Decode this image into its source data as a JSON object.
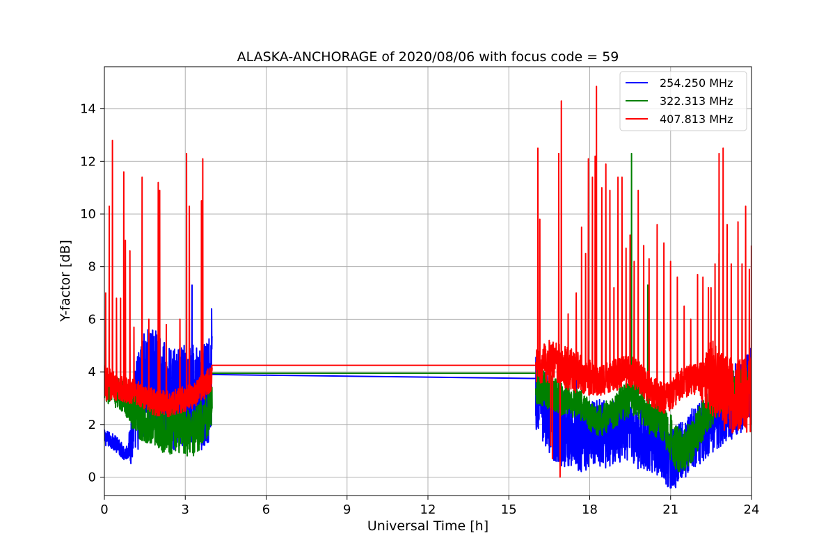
{
  "chart_data": {
    "type": "line",
    "title": "ALASKA-ANCHORAGE of 2020/08/06 with focus code = 59",
    "xlabel": "Universal Time [h]",
    "ylabel": "Y-factor [dB]",
    "xlim": [
      0,
      24
    ],
    "ylim": [
      -0.7,
      15.6
    ],
    "xticks": [
      0,
      3,
      6,
      9,
      12,
      15,
      18,
      21,
      24
    ],
    "yticks": [
      0,
      2,
      4,
      6,
      8,
      10,
      12,
      14
    ],
    "grid": true,
    "legend_position": "top-right",
    "series": [
      {
        "name": "254.250 MHz",
        "color": "#0000ff",
        "x": [
          0,
          0.25,
          0.5,
          0.75,
          0.9,
          1.0,
          1.25,
          1.5,
          1.75,
          2.0,
          2.25,
          2.5,
          2.75,
          3.0,
          3.25,
          3.5,
          3.75,
          4.0,
          16.0,
          16.25,
          16.5,
          16.75,
          17.0,
          17.25,
          17.5,
          17.75,
          18.0,
          18.25,
          18.5,
          18.75,
          19.0,
          19.25,
          19.5,
          19.75,
          20.0,
          20.25,
          20.5,
          20.75,
          21.0,
          21.25,
          21.5,
          21.75,
          22.0,
          22.25,
          22.5,
          22.75,
          23.0,
          23.25,
          23.5,
          23.75,
          24.0
        ],
        "y": [
          1.5,
          1.4,
          1.2,
          0.9,
          1.0,
          1.8,
          3.0,
          3.6,
          3.7,
          3.5,
          3.2,
          3.0,
          2.9,
          3.1,
          3.3,
          2.8,
          3.1,
          3.6,
          3.3,
          2.8,
          2.4,
          2.0,
          1.9,
          1.7,
          1.6,
          1.5,
          1.5,
          1.7,
          1.6,
          1.6,
          1.9,
          1.8,
          1.7,
          1.5,
          1.4,
          1.3,
          1.2,
          1.0,
          0.7,
          0.8,
          1.1,
          1.4,
          1.6,
          1.8,
          2.1,
          2.4,
          2.6,
          2.8,
          3.0,
          3.2,
          3.6
        ],
        "noise": [
          0.3,
          0.3,
          0.3,
          0.3,
          0.3,
          1.4,
          2.0,
          2.0,
          2.0,
          2.0,
          2.0,
          2.0,
          2.0,
          2.0,
          2.0,
          2.0,
          2.0,
          2.0,
          1.5,
          1.5,
          1.5,
          1.5,
          1.5,
          1.4,
          1.4,
          1.4,
          1.3,
          1.3,
          1.3,
          1.3,
          1.3,
          1.3,
          1.2,
          1.2,
          1.2,
          1.2,
          1.2,
          1.2,
          1.2,
          1.2,
          1.2,
          1.2,
          1.2,
          1.2,
          1.3,
          1.3,
          1.4,
          1.4,
          1.4,
          1.4,
          1.4
        ],
        "spikes": [
          [
            3.25,
            7.3
          ],
          [
            3.98,
            6.4
          ],
          [
            17.5,
            4.6
          ],
          [
            22.5,
            3.8
          ]
        ],
        "gap": [
          [
            4.0,
            3.9
          ],
          [
            16.0,
            3.75
          ]
        ]
      },
      {
        "name": "322.313 MHz",
        "color": "#008000",
        "x": [
          0,
          0.25,
          0.5,
          0.75,
          1.0,
          1.25,
          1.5,
          1.75,
          2.0,
          2.25,
          2.5,
          2.75,
          3.0,
          3.25,
          3.5,
          3.75,
          4.0,
          16.0,
          16.25,
          16.5,
          16.75,
          17.0,
          17.25,
          17.5,
          17.75,
          18.0,
          18.25,
          18.5,
          18.75,
          19.0,
          19.25,
          19.5,
          19.75,
          20.0,
          20.25,
          20.5,
          20.75,
          21.0,
          21.25,
          21.5,
          21.75,
          22.0,
          22.25,
          22.5,
          22.75,
          23.0,
          23.25,
          23.5,
          23.75,
          24.0
        ],
        "y": [
          3.3,
          3.3,
          3.2,
          3.0,
          2.7,
          2.4,
          2.2,
          2.1,
          1.9,
          1.8,
          1.7,
          1.8,
          1.7,
          1.6,
          1.9,
          2.3,
          2.8,
          3.5,
          3.4,
          3.2,
          3.1,
          3.0,
          2.9,
          2.8,
          2.7,
          2.3,
          2.1,
          2.2,
          2.4,
          2.6,
          2.8,
          3.0,
          3.0,
          2.6,
          2.3,
          2.2,
          2.0,
          1.5,
          1.1,
          1.0,
          1.3,
          1.8,
          2.3,
          2.7,
          3.0,
          3.2,
          3.3,
          3.4,
          3.6,
          3.7
        ],
        "noise": [
          0.6,
          0.6,
          0.6,
          0.6,
          0.8,
          0.9,
          0.9,
          0.9,
          0.9,
          0.9,
          0.9,
          0.9,
          0.9,
          0.9,
          0.9,
          0.9,
          0.9,
          0.7,
          0.7,
          0.7,
          0.7,
          0.7,
          0.6,
          0.6,
          0.6,
          0.6,
          0.6,
          0.6,
          0.6,
          0.7,
          0.7,
          0.7,
          0.7,
          0.7,
          0.7,
          0.7,
          0.7,
          0.9,
          0.9,
          0.9,
          0.9,
          0.8,
          0.8,
          0.8,
          0.7,
          0.7,
          0.7,
          0.7,
          0.7,
          0.7
        ],
        "spikes": [
          [
            19.55,
            12.3
          ],
          [
            20.15,
            7.3
          ],
          [
            22.8,
            8.5
          ]
        ],
        "gap": [
          [
            4.0,
            3.95
          ],
          [
            16.0,
            3.95
          ]
        ]
      },
      {
        "name": "407.813 MHz",
        "color": "#ff0000",
        "x": [
          0,
          0.25,
          0.5,
          0.75,
          1.0,
          1.25,
          1.5,
          1.75,
          2.0,
          2.25,
          2.5,
          2.75,
          3.0,
          3.25,
          3.5,
          3.75,
          4.0,
          16.0,
          16.25,
          16.5,
          16.75,
          17.0,
          17.25,
          17.5,
          17.75,
          18.0,
          18.25,
          18.5,
          18.75,
          19.0,
          19.25,
          19.5,
          19.75,
          20.0,
          20.25,
          20.5,
          20.75,
          21.0,
          21.25,
          21.5,
          21.75,
          22.0,
          22.25,
          22.5,
          22.75,
          23.0,
          23.25,
          23.5,
          23.75,
          24.0
        ],
        "y": [
          3.6,
          3.5,
          3.4,
          3.3,
          3.3,
          3.2,
          3.0,
          2.9,
          2.8,
          2.8,
          2.8,
          2.9,
          3.0,
          3.1,
          3.3,
          3.5,
          3.8,
          4.2,
          4.3,
          4.4,
          4.3,
          4.2,
          4.1,
          4.0,
          3.9,
          3.8,
          3.7,
          3.7,
          3.8,
          3.9,
          4.0,
          4.0,
          3.9,
          3.6,
          3.3,
          3.1,
          3.0,
          3.1,
          3.4,
          3.6,
          3.7,
          3.7,
          3.7,
          3.8,
          3.5,
          3.2,
          3.0,
          3.0,
          3.1,
          3.2
        ],
        "noise": [
          0.7,
          0.6,
          0.5,
          0.5,
          0.5,
          0.5,
          0.5,
          0.5,
          0.5,
          0.5,
          0.5,
          0.5,
          0.5,
          0.5,
          0.5,
          0.5,
          0.5,
          0.6,
          0.8,
          0.8,
          0.8,
          0.8,
          0.8,
          0.8,
          0.8,
          0.7,
          0.6,
          0.6,
          0.6,
          0.6,
          0.6,
          0.6,
          0.6,
          0.6,
          0.6,
          0.6,
          0.6,
          0.6,
          0.6,
          0.6,
          0.6,
          0.6,
          1.0,
          1.5,
          1.5,
          1.5,
          1.5,
          1.5,
          1.5,
          1.5
        ],
        "spikes": [
          [
            0.05,
            7.0
          ],
          [
            0.18,
            10.3
          ],
          [
            0.3,
            12.8
          ],
          [
            0.45,
            6.8
          ],
          [
            0.6,
            6.8
          ],
          [
            0.72,
            11.6
          ],
          [
            0.78,
            9.0
          ],
          [
            0.95,
            8.6
          ],
          [
            1.1,
            5.7
          ],
          [
            1.4,
            11.4
          ],
          [
            1.65,
            6.0
          ],
          [
            2.0,
            11.2
          ],
          [
            2.05,
            10.9
          ],
          [
            2.3,
            5.8
          ],
          [
            2.8,
            6.0
          ],
          [
            3.05,
            12.3
          ],
          [
            3.15,
            10.3
          ],
          [
            3.6,
            10.5
          ],
          [
            3.65,
            12.1
          ],
          [
            16.08,
            12.5
          ],
          [
            16.15,
            9.8
          ],
          [
            16.5,
            5.2
          ],
          [
            16.75,
            4.4
          ],
          [
            16.85,
            12.3
          ],
          [
            16.95,
            14.3
          ],
          [
            17.2,
            6.2
          ],
          [
            17.5,
            7.0
          ],
          [
            17.7,
            9.5
          ],
          [
            17.85,
            8.5
          ],
          [
            17.95,
            12.1
          ],
          [
            18.1,
            11.4
          ],
          [
            18.2,
            12.2
          ],
          [
            18.25,
            14.85
          ],
          [
            18.45,
            11.0
          ],
          [
            18.6,
            11.9
          ],
          [
            18.75,
            10.9
          ],
          [
            18.9,
            7.2
          ],
          [
            19.05,
            11.4
          ],
          [
            19.2,
            11.4
          ],
          [
            19.35,
            8.7
          ],
          [
            19.5,
            9.2
          ],
          [
            19.65,
            8.2
          ],
          [
            19.8,
            10.9
          ],
          [
            20.0,
            8.8
          ],
          [
            20.2,
            8.3
          ],
          [
            20.5,
            9.6
          ],
          [
            20.75,
            8.9
          ],
          [
            21.0,
            8.2
          ],
          [
            21.25,
            7.6
          ],
          [
            21.5,
            6.5
          ],
          [
            21.75,
            6.0
          ],
          [
            22.0,
            7.7
          ],
          [
            22.2,
            7.6
          ],
          [
            22.4,
            7.2
          ],
          [
            22.5,
            7.2
          ],
          [
            22.65,
            8.1
          ],
          [
            22.8,
            12.3
          ],
          [
            22.95,
            12.5
          ],
          [
            23.1,
            9.6
          ],
          [
            23.25,
            8.1
          ],
          [
            23.5,
            9.7
          ],
          [
            23.65,
            8.1
          ],
          [
            23.78,
            10.3
          ],
          [
            23.92,
            7.9
          ],
          [
            24.0,
            8.8
          ]
        ],
        "dips": [
          [
            16.55,
            1.2
          ],
          [
            16.62,
            0.7
          ],
          [
            16.9,
            0.0
          ]
        ],
        "gap": [
          [
            4.0,
            4.25
          ],
          [
            16.0,
            4.25
          ]
        ]
      }
    ]
  }
}
